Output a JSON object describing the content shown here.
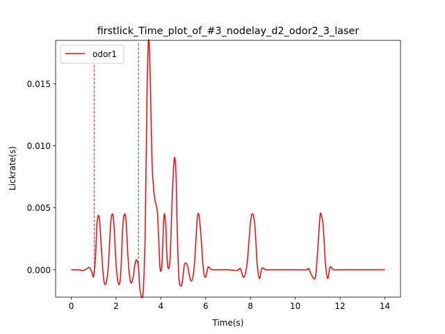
{
  "chart_data": {
    "type": "line",
    "title": "firstlick_Time_plot_of_#3_nodelay_d2_odor2_3_laser",
    "xlabel": "Time(s)",
    "ylabel": "Lickrate(s)",
    "xlim": [
      -0.7,
      14.7
    ],
    "ylim": [
      -0.0022,
      0.0185
    ],
    "xticks": [
      0,
      2,
      4,
      6,
      8,
      10,
      12,
      14
    ],
    "xtick_labels": [
      "0",
      "2",
      "4",
      "6",
      "8",
      "10",
      "12",
      "14"
    ],
    "yticks": [
      0.0,
      0.005,
      0.01,
      0.015
    ],
    "ytick_labels": [
      "0.000",
      "0.005",
      "0.010",
      "0.015"
    ],
    "grid": false,
    "legend_position": "top-left",
    "series": [
      {
        "name": "odor1",
        "color": "#ff0000",
        "x": [
          0,
          0.3,
          0.55,
          0.7,
          0.8,
          0.9,
          0.95,
          1.0,
          1.08,
          1.15,
          1.25,
          1.35,
          1.45,
          1.55,
          1.65,
          1.75,
          1.82,
          1.9,
          2.0,
          2.1,
          2.2,
          2.3,
          2.38,
          2.45,
          2.55,
          2.65,
          2.75,
          2.85,
          2.92,
          3.0,
          3.05,
          3.12,
          3.17,
          3.22,
          3.3,
          3.38,
          3.45,
          3.52,
          3.6,
          3.68,
          3.75,
          3.85,
          3.95,
          4.0,
          4.05,
          4.1,
          4.15,
          4.22,
          4.28,
          4.35,
          4.42,
          4.5,
          4.6,
          4.68,
          4.72,
          4.8,
          4.9,
          4.97,
          5.05,
          5.15,
          5.22,
          5.3,
          5.4,
          5.5,
          5.6,
          5.65,
          5.72,
          5.8,
          5.9,
          6.0,
          6.1,
          6.2,
          6.3,
          6.5,
          7.0,
          7.4,
          7.55,
          7.7,
          7.85,
          8.0,
          8.1,
          8.2,
          8.3,
          8.4,
          8.5,
          8.6,
          8.7,
          9.0,
          10.0,
          10.5,
          10.6,
          10.75,
          10.9,
          11.0,
          11.1,
          11.15,
          11.25,
          11.35,
          11.45,
          11.55,
          11.65,
          11.75,
          12.0,
          13.0,
          14.0
        ],
        "y": [
          0.0,
          0.0,
          -5e-05,
          0.0001,
          0.0002,
          -0.0001,
          -0.0004,
          -0.0005,
          0.001,
          0.0038,
          0.0042,
          0.0015,
          -0.0008,
          -0.0011,
          0.0002,
          0.0035,
          0.0045,
          0.0038,
          0.0005,
          -0.0011,
          -0.0005,
          0.0035,
          0.0045,
          0.0038,
          0.0005,
          -0.001,
          -0.0007,
          0.0005,
          0.0008,
          0.0002,
          -0.0013,
          -0.0021,
          -0.0022,
          -0.0015,
          0.003,
          0.014,
          0.0185,
          0.016,
          0.009,
          0.0065,
          0.0055,
          0.0045,
          0.0005,
          -0.0001,
          0.0005,
          0.0028,
          0.0045,
          0.0035,
          0.0008,
          0.0001,
          0.0012,
          0.0055,
          0.009,
          0.0075,
          0.004,
          -0.0005,
          -0.0013,
          -0.0008,
          0.0004,
          0.0005,
          0.0001,
          -0.0007,
          -0.0008,
          0.0005,
          0.0035,
          0.0045,
          0.0042,
          0.0025,
          0.0,
          -0.0006,
          0.0002,
          0.0001,
          0.0,
          0.0,
          0.0,
          -5e-05,
          0.0001,
          -0.0006,
          0.0005,
          0.0038,
          0.0045,
          0.0035,
          0.0005,
          -0.0007,
          0.0001,
          0.0001,
          0.0,
          0.0,
          0.0,
          0.0,
          0.0001,
          -0.0005,
          -0.0006,
          0.0015,
          0.0042,
          0.0045,
          0.0035,
          0.0005,
          -0.0007,
          0.0002,
          0.0001,
          0.0,
          0.0,
          0.0,
          0.0
        ]
      }
    ],
    "vlines": [
      {
        "x": 1.03,
        "y_start": -0.0002,
        "y_end": 0.0177,
        "color": "#ff0000",
        "style": "dashed"
      },
      {
        "x": 3.0,
        "y_start": 0.0002,
        "y_end": 0.0184,
        "color": "#008000",
        "style": "dashed"
      }
    ]
  }
}
